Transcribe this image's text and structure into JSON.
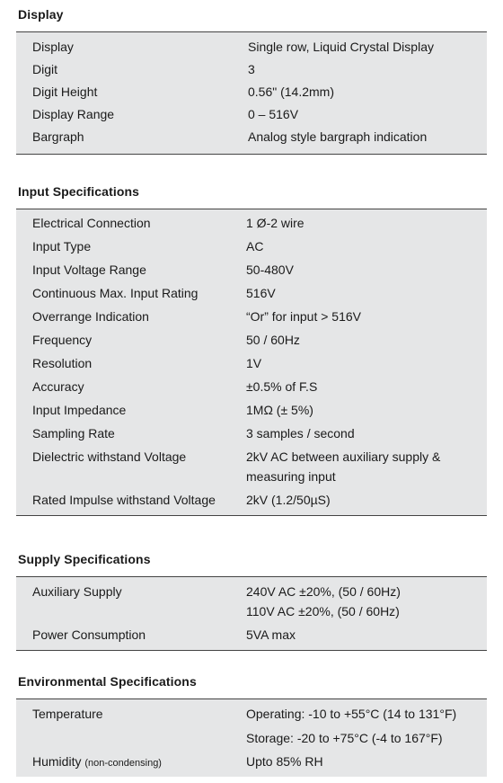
{
  "display": {
    "title": "Display",
    "rows": [
      {
        "label": "Display",
        "value": "Single row, Liquid Crystal Display"
      },
      {
        "label": "Digit",
        "value": "3"
      },
      {
        "label": "Digit Height",
        "value": "0.56\" (14.2mm)"
      },
      {
        "label": "Display Range",
        "value": "0 – 516V"
      },
      {
        "label": "Bargraph",
        "value": "Analog style bargraph indication"
      }
    ]
  },
  "input": {
    "title": "Input Specifications",
    "rows": [
      {
        "label": "Electrical Connection",
        "value": "1 Ø-2 wire"
      },
      {
        "label": "Input Type",
        "value": "AC"
      },
      {
        "label": "Input Voltage Range",
        "value": "50-480V"
      },
      {
        "label": "Continuous Max. Input Rating",
        "value": "516V"
      },
      {
        "label": "Overrange Indication",
        "value": "“Or” for input > 516V"
      },
      {
        "label": "Frequency",
        "value": "50 / 60Hz"
      },
      {
        "label": "Resolution",
        "value": "1V"
      },
      {
        "label": "Accuracy",
        "value": "±0.5% of F.S"
      },
      {
        "label": "Input Impedance",
        "value": "1MΩ (± 5%)"
      },
      {
        "label": "Sampling Rate",
        "value": "3 samples / second"
      },
      {
        "label": "Dielectric withstand Voltage",
        "value_lines": [
          "2kV AC between auxiliary supply &",
          "measuring input"
        ]
      },
      {
        "label": "Rated Impulse withstand Voltage",
        "value": "2kV (1.2/50µS)"
      }
    ]
  },
  "supply": {
    "title": "Supply Specifications",
    "rows": [
      {
        "label": "Auxiliary Supply",
        "value_lines": [
          "240V AC ±20%, (50 / 60Hz)",
          "110V AC ±20%, (50 / 60Hz)"
        ]
      },
      {
        "label": "Power Consumption",
        "value": "5VA max"
      }
    ]
  },
  "environmental": {
    "title": "Environmental Specifications",
    "rows": [
      {
        "label": "Temperature",
        "value_lines": [
          "Operating: -10 to +55°C (14 to 131°F)",
          "Storage: -20 to +75°C (-4 to 167°F)"
        ]
      },
      {
        "label": "Humidity",
        "note": "(non-condensing)",
        "value": "Upto 85% RH"
      }
    ]
  }
}
